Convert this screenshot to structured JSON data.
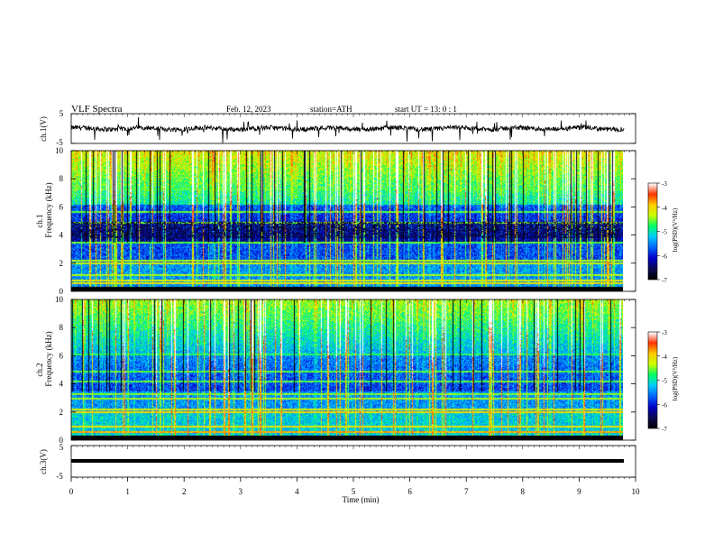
{
  "header": {
    "title": "VLF  Spectra",
    "date": "Feb. 12, 2023",
    "station": "station=ATH",
    "start": "start  UT  =    13: 0   : 1"
  },
  "chart_data": [
    {
      "type": "line",
      "name": "ch1-waveform",
      "ylabel": "ch.1(V)",
      "yticks": [
        "5",
        "-5"
      ],
      "ylim": [
        -5,
        5
      ],
      "trace_level": 0
    },
    {
      "type": "heatmap",
      "name": "ch1-spectrogram",
      "ylabel": "ch.1\nFrequency (kHz)",
      "ylabel_top": "ch.1",
      "ylabel_bottom": "Frequency (kHz)",
      "ylim": [
        0,
        10
      ],
      "yticks": [
        "0",
        "2",
        "4",
        "6",
        "8",
        "10"
      ],
      "colorbar": {
        "label": "log(PSD)(V²/Hz)",
        "range": [
          -7,
          -3
        ],
        "ticks": [
          "-3",
          "-4",
          "-5",
          "-6",
          "-7"
        ]
      }
    },
    {
      "type": "heatmap",
      "name": "ch2-spectrogram",
      "ylabel_top": "ch.2",
      "ylabel_bottom": "Frequency (kHz)",
      "ylim": [
        0,
        10
      ],
      "yticks": [
        "0",
        "2",
        "4",
        "6",
        "8",
        "10"
      ],
      "colorbar": {
        "label": "log(PSD)(V²/Hz)",
        "range": [
          -7,
          -3
        ],
        "ticks": [
          "-3",
          "-4",
          "-5",
          "-6",
          "-7"
        ]
      }
    },
    {
      "type": "line",
      "name": "ch3-waveform",
      "ylabel": "ch.3(V)",
      "yticks": [
        "5",
        "-5"
      ],
      "ylim": [
        -5,
        5
      ],
      "trace_level": 0
    }
  ],
  "xaxis": {
    "label": "Time  (min)",
    "xlim": [
      0,
      10
    ],
    "ticks": [
      "0",
      "1",
      "2",
      "3",
      "4",
      "5",
      "6",
      "7",
      "8",
      "9",
      "10"
    ]
  },
  "colors": {
    "jet": [
      "#000000",
      "#0a0a55",
      "#0000cc",
      "#0066ff",
      "#00ccff",
      "#00ff66",
      "#ccff00",
      "#ffcc00",
      "#ff3300",
      "#ffffff"
    ]
  }
}
